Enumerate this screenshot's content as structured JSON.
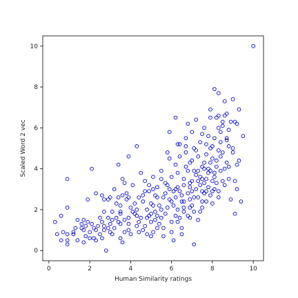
{
  "chart_data": {
    "type": "scatter",
    "title": "",
    "xlabel": "Human Similarity ratings",
    "ylabel": "Scaled Word 2 vec",
    "xlim": [
      -0.3,
      10.5
    ],
    "ylim": [
      -0.5,
      10.5
    ],
    "xticks": [
      "0",
      "2",
      "4",
      "6",
      "8",
      "10"
    ],
    "yticks": [
      "0",
      "2",
      "4",
      "6",
      "8",
      "10"
    ],
    "grid": false,
    "legend": "none",
    "marker": "hollow-circle",
    "marker_color": "#0000cc",
    "series": [
      {
        "points": [
          [
            10.0,
            10.0
          ],
          [
            0.3,
            1.4
          ],
          [
            0.4,
            0.8
          ],
          [
            0.6,
            1.7
          ],
          [
            0.6,
            0.5
          ],
          [
            0.9,
            0.8
          ],
          [
            0.9,
            0.3
          ],
          [
            0.9,
            0.5
          ],
          [
            0.9,
            3.5
          ],
          [
            0.9,
            2.1
          ],
          [
            1.2,
            0.8
          ],
          [
            1.3,
            1.1
          ],
          [
            1.4,
            0.5
          ],
          [
            1.6,
            1.3
          ],
          [
            1.7,
            1.0
          ],
          [
            1.7,
            0.4
          ],
          [
            1.8,
            0.7
          ],
          [
            1.9,
            1.4
          ],
          [
            2.0,
            0.6
          ],
          [
            2.1,
            4.0
          ],
          [
            2.1,
            1.3
          ],
          [
            2.3,
            1.0
          ],
          [
            2.3,
            0.5
          ],
          [
            2.4,
            1.2
          ],
          [
            2.5,
            0.8
          ],
          [
            2.6,
            0.6
          ],
          [
            2.6,
            1.4
          ],
          [
            2.7,
            2.5
          ],
          [
            2.7,
            1.0
          ],
          [
            2.8,
            0.0
          ],
          [
            2.9,
            1.6
          ],
          [
            3.0,
            2.6
          ],
          [
            3.0,
            1.3
          ],
          [
            3.1,
            0.8
          ],
          [
            3.2,
            3.0
          ],
          [
            3.2,
            1.1
          ],
          [
            3.3,
            2.3
          ],
          [
            3.4,
            4.2
          ],
          [
            3.4,
            1.4
          ],
          [
            3.5,
            0.6
          ],
          [
            3.5,
            1.9
          ],
          [
            3.6,
            3.5
          ],
          [
            3.6,
            2.7
          ],
          [
            3.7,
            0.9
          ],
          [
            3.7,
            1.5
          ],
          [
            3.8,
            2.5
          ],
          [
            3.9,
            4.6
          ],
          [
            3.9,
            1.3
          ],
          [
            4.0,
            2.1
          ],
          [
            4.0,
            0.8
          ],
          [
            4.1,
            3.2
          ],
          [
            4.2,
            1.8
          ],
          [
            4.3,
            5.1
          ],
          [
            4.3,
            1.2
          ],
          [
            4.4,
            2.6
          ],
          [
            4.4,
            0.9
          ],
          [
            4.5,
            3.8
          ],
          [
            4.5,
            1.6
          ],
          [
            4.6,
            2.4
          ],
          [
            4.7,
            1.2
          ],
          [
            4.7,
            2.9
          ],
          [
            4.8,
            0.8
          ],
          [
            4.9,
            3.2
          ],
          [
            4.9,
            1.7
          ],
          [
            5.0,
            2.3
          ],
          [
            5.0,
            1.4
          ],
          [
            5.1,
            3.6
          ],
          [
            5.1,
            0.9
          ],
          [
            5.2,
            2.7
          ],
          [
            5.2,
            1.9
          ],
          [
            5.3,
            1.1
          ],
          [
            5.3,
            3.1
          ],
          [
            5.4,
            2.2
          ],
          [
            5.5,
            1.6
          ],
          [
            5.5,
            3.9
          ],
          [
            5.6,
            0.7
          ],
          [
            5.6,
            2.6
          ],
          [
            5.7,
            1.8
          ],
          [
            5.7,
            3.3
          ],
          [
            5.8,
            2.1
          ],
          [
            5.8,
            4.8
          ],
          [
            5.9,
            5.8
          ],
          [
            5.9,
            2.5
          ],
          [
            6.0,
            1.4
          ],
          [
            6.0,
            3.6
          ],
          [
            6.1,
            0.5
          ],
          [
            6.1,
            2.9
          ],
          [
            6.2,
            4.2
          ],
          [
            6.2,
            6.5
          ],
          [
            6.2,
            1.7
          ],
          [
            6.3,
            3.1
          ],
          [
            6.3,
            2.0
          ],
          [
            6.4,
            4.6
          ],
          [
            6.4,
            5.2
          ],
          [
            6.5,
            2.4
          ],
          [
            6.5,
            0.8
          ],
          [
            6.6,
            3.5
          ],
          [
            6.6,
            1.9
          ],
          [
            6.7,
            4.1
          ],
          [
            6.7,
            5.5
          ],
          [
            6.8,
            2.8
          ],
          [
            6.8,
            6.2
          ],
          [
            6.9,
            3.3
          ],
          [
            6.9,
            1.6
          ],
          [
            7.0,
            4.4
          ],
          [
            7.0,
            5.8
          ],
          [
            7.0,
            2.2
          ],
          [
            7.1,
            0.3
          ],
          [
            7.1,
            3.9
          ],
          [
            7.2,
            6.4
          ],
          [
            7.2,
            4.9
          ],
          [
            7.3,
            2.6
          ],
          [
            7.3,
            1.5
          ],
          [
            7.4,
            3.6
          ],
          [
            7.4,
            5.3
          ],
          [
            7.5,
            4.1
          ],
          [
            7.5,
            2.9
          ],
          [
            7.6,
            6.0
          ],
          [
            7.6,
            3.3
          ],
          [
            7.7,
            4.7
          ],
          [
            7.7,
            2.4
          ],
          [
            7.8,
            5.6
          ],
          [
            7.8,
            3.8
          ],
          [
            7.9,
            6.9
          ],
          [
            7.9,
            4.3
          ],
          [
            8.0,
            2.9
          ],
          [
            8.0,
            5.1
          ],
          [
            8.1,
            7.9
          ],
          [
            8.1,
            3.6
          ],
          [
            8.2,
            6.5
          ],
          [
            8.2,
            4.4
          ],
          [
            8.3,
            7.7
          ],
          [
            8.3,
            2.6
          ],
          [
            8.4,
            5.8
          ],
          [
            8.4,
            3.9
          ],
          [
            8.5,
            6.1
          ],
          [
            8.5,
            4.8
          ],
          [
            8.6,
            7.3
          ],
          [
            8.6,
            3.2
          ],
          [
            8.7,
            5.4
          ],
          [
            8.7,
            6.7
          ],
          [
            8.8,
            4.1
          ],
          [
            8.9,
            2.5
          ],
          [
            8.9,
            6.3
          ],
          [
            9.0,
            5.0
          ],
          [
            9.0,
            7.4
          ],
          [
            9.1,
            1.8
          ],
          [
            9.1,
            3.4
          ],
          [
            9.2,
            6.2
          ],
          [
            9.3,
            6.9
          ],
          [
            9.3,
            4.4
          ],
          [
            9.4,
            2.4
          ],
          [
            9.5,
            5.6
          ],
          [
            1.2,
            0.9
          ],
          [
            1.6,
            1.1
          ],
          [
            2.2,
            1.1
          ],
          [
            2.9,
            2.5
          ],
          [
            3.3,
            1.6
          ],
          [
            3.6,
            0.4
          ],
          [
            4.1,
            1.9
          ],
          [
            4.6,
            1.0
          ],
          [
            5.0,
            1.8
          ],
          [
            5.4,
            1.3
          ],
          [
            5.9,
            3.0
          ],
          [
            6.4,
            2.9
          ],
          [
            6.8,
            3.9
          ],
          [
            7.2,
            3.0
          ],
          [
            7.6,
            4.3
          ],
          [
            8.0,
            3.4
          ],
          [
            8.4,
            4.6
          ],
          [
            8.8,
            5.1
          ],
          [
            6.1,
            2.2
          ],
          [
            6.6,
            2.4
          ],
          [
            7.1,
            2.6
          ],
          [
            7.5,
            3.5
          ],
          [
            7.9,
            3.9
          ],
          [
            8.3,
            2.9
          ],
          [
            5.2,
            1.5
          ],
          [
            4.8,
            2.0
          ],
          [
            3.9,
            1.6
          ],
          [
            3.1,
            1.9
          ],
          [
            2.5,
            1.6
          ],
          [
            1.8,
            1.2
          ],
          [
            6.3,
            1.4
          ],
          [
            6.9,
            2.1
          ],
          [
            7.4,
            1.9
          ],
          [
            7.8,
            3.1
          ],
          [
            8.2,
            3.3
          ],
          [
            8.6,
            4.0
          ],
          [
            9.0,
            4.8
          ],
          [
            5.6,
            1.1
          ],
          [
            6.0,
            0.9
          ],
          [
            6.5,
            1.1
          ],
          [
            5.0,
            0.7
          ],
          [
            4.4,
            1.4
          ],
          [
            3.8,
            2.8
          ],
          [
            7.0,
            3.4
          ],
          [
            7.3,
            4.6
          ],
          [
            7.7,
            5.2
          ],
          [
            8.1,
            5.5
          ],
          [
            8.5,
            6.3
          ],
          [
            6.7,
            4.8
          ],
          [
            6.3,
            3.8
          ],
          [
            5.8,
            3.2
          ],
          [
            5.3,
            2.6
          ],
          [
            4.9,
            2.9
          ],
          [
            3.5,
            2.2
          ],
          [
            2.7,
            1.2
          ],
          [
            2.0,
            0.9
          ],
          [
            1.4,
            1.5
          ],
          [
            0.7,
            0.9
          ],
          [
            7.5,
            2.1
          ],
          [
            7.9,
            2.7
          ],
          [
            8.3,
            4.9
          ],
          [
            8.7,
            4.3
          ],
          [
            6.2,
            2.6
          ],
          [
            6.6,
            3.2
          ],
          [
            7.0,
            2.9
          ],
          [
            7.4,
            3.2
          ],
          [
            7.8,
            4.0
          ],
          [
            8.2,
            4.1
          ],
          [
            6.9,
            4.3
          ],
          [
            7.3,
            3.9
          ],
          [
            7.7,
            3.5
          ],
          [
            8.1,
            3.0
          ],
          [
            6.4,
            1.6
          ],
          [
            6.8,
            1.7
          ],
          [
            5.5,
            2.0
          ],
          [
            5.1,
            2.2
          ],
          [
            4.6,
            2.7
          ],
          [
            4.2,
            2.3
          ],
          [
            3.7,
            3.3
          ],
          [
            3.4,
            2.6
          ],
          [
            2.9,
            1.1
          ],
          [
            2.3,
            2.8
          ],
          [
            1.9,
            2.5
          ],
          [
            7.6,
            2.8
          ],
          [
            8.0,
            2.3
          ],
          [
            8.8,
            3.5
          ],
          [
            9.2,
            3.0
          ],
          [
            6.0,
            2.4
          ],
          [
            6.2,
            3.0
          ],
          [
            6.6,
            2.1
          ],
          [
            6.9,
            2.5
          ],
          [
            7.2,
            3.7
          ],
          [
            7.6,
            4.0
          ],
          [
            8.0,
            4.5
          ],
          [
            8.4,
            5.3
          ],
          [
            8.8,
            5.9
          ],
          [
            9.2,
            4.2
          ],
          [
            5.7,
            2.8
          ],
          [
            5.3,
            1.7
          ],
          [
            4.8,
            1.6
          ],
          [
            4.3,
            1.7
          ],
          [
            3.9,
            1.0
          ],
          [
            3.5,
            1.3
          ],
          [
            3.0,
            0.9
          ],
          [
            2.6,
            2.7
          ],
          [
            2.2,
            0.6
          ],
          [
            1.7,
            1.5
          ],
          [
            7.1,
            1.9
          ],
          [
            7.5,
            2.4
          ],
          [
            7.9,
            5.0
          ],
          [
            8.3,
            6.6
          ],
          [
            8.7,
            5.5
          ],
          [
            9.1,
            6.3
          ],
          [
            6.5,
            2.7
          ],
          [
            6.9,
            3.1
          ],
          [
            7.3,
            3.4
          ],
          [
            7.7,
            2.9
          ],
          [
            8.1,
            3.8
          ],
          [
            8.5,
            3.4
          ],
          [
            6.3,
            5.2
          ],
          [
            6.7,
            5.1
          ],
          [
            7.1,
            5.0
          ],
          [
            7.5,
            5.7
          ],
          [
            7.9,
            6.5
          ],
          [
            8.3,
            6.0
          ],
          [
            8.6,
            6.6
          ],
          [
            5.9,
            4.5
          ],
          [
            5.5,
            3.5
          ],
          [
            5.1,
            3.0
          ],
          [
            4.7,
            3.4
          ],
          [
            4.3,
            2.0
          ],
          [
            3.9,
            2.6
          ],
          [
            3.5,
            1.8
          ],
          [
            3.1,
            1.5
          ],
          [
            2.7,
            1.9
          ]
        ]
      }
    ]
  }
}
